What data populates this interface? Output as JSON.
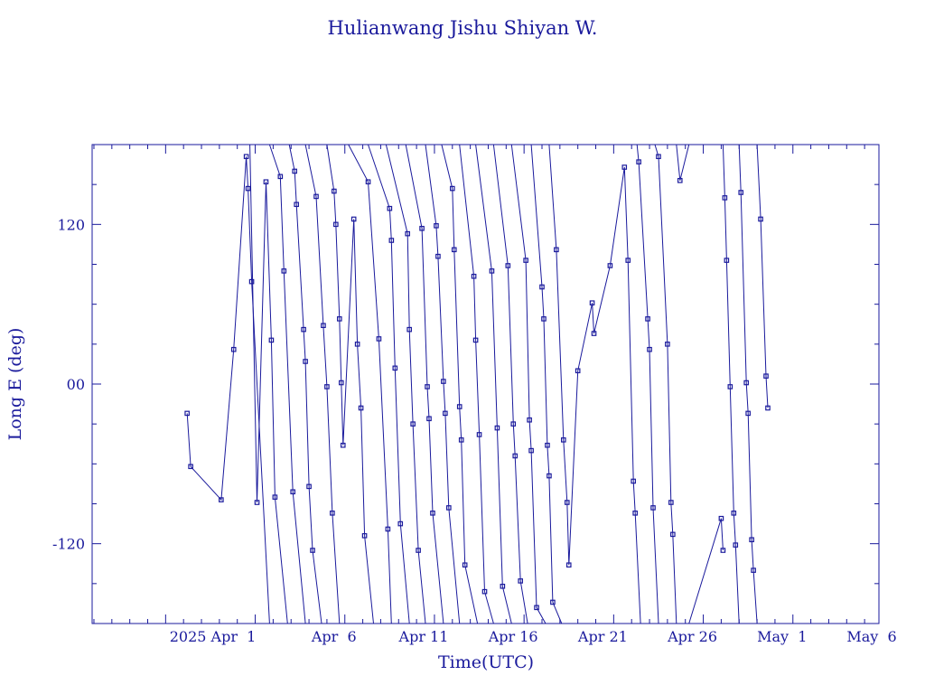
{
  "chart_data": {
    "type": "line",
    "title": "Hulianwang Jishu Shiyan W.",
    "xlabel": "Time(UTC)",
    "ylabel": "Long E (deg)",
    "ylim": [
      -180,
      180
    ],
    "xlim_days_from_mar27": [
      -4.0,
      39.9
    ],
    "x_tick_labels": [
      "2025 Apr  1",
      "Apr  6",
      "Apr 11",
      "Apr 16",
      "Apr 21",
      "Apr 26",
      "May  1",
      "May  6"
    ],
    "y_tick_labels": [
      "-120",
      "00",
      "120"
    ],
    "grid": false,
    "color": "#1a1a9c",
    "segments": [
      [
        [
          1.3,
          -22
        ],
        [
          1.5,
          -62
        ],
        [
          3.2,
          -87
        ],
        [
          3.9,
          26
        ],
        [
          4.6,
          171
        ],
        [
          4.7,
          147
        ],
        [
          4.9,
          77
        ],
        [
          5.9,
          -180
        ]
      ],
      [
        [
          4.8,
          180
        ],
        [
          5.2,
          -89
        ],
        [
          5.7,
          152
        ],
        [
          6.0,
          33
        ],
        [
          6.2,
          -85
        ],
        [
          6.9,
          -180
        ]
      ],
      [
        [
          5.9,
          180
        ],
        [
          6.5,
          156
        ],
        [
          6.7,
          85
        ],
        [
          7.2,
          -81
        ],
        [
          7.9,
          -180
        ]
      ],
      [
        [
          7.0,
          180
        ],
        [
          7.3,
          160
        ],
        [
          7.4,
          135
        ],
        [
          7.8,
          41
        ],
        [
          7.9,
          17
        ],
        [
          8.1,
          -77
        ],
        [
          8.3,
          -125
        ],
        [
          8.8,
          -180
        ]
      ],
      [
        [
          7.9,
          180
        ],
        [
          8.5,
          141
        ],
        [
          8.9,
          44
        ],
        [
          9.1,
          -2
        ],
        [
          9.4,
          -97
        ],
        [
          9.8,
          -180
        ]
      ],
      [
        [
          9.1,
          180
        ],
        [
          9.5,
          145
        ],
        [
          9.6,
          120
        ],
        [
          9.8,
          49
        ],
        [
          9.9,
          1
        ],
        [
          10.0,
          -46
        ],
        [
          10.6,
          124
        ],
        [
          10.8,
          30
        ],
        [
          11.0,
          -18
        ],
        [
          11.2,
          -114
        ],
        [
          11.7,
          -180
        ]
      ],
      [
        [
          10.3,
          180
        ],
        [
          11.4,
          152
        ],
        [
          12.0,
          34
        ],
        [
          12.5,
          -109
        ],
        [
          12.7,
          -180
        ]
      ],
      [
        [
          11.4,
          180
        ],
        [
          12.6,
          132
        ],
        [
          12.7,
          108
        ],
        [
          12.9,
          12
        ],
        [
          13.2,
          -105
        ],
        [
          13.7,
          -180
        ]
      ],
      [
        [
          12.4,
          180
        ],
        [
          13.6,
          113
        ],
        [
          13.7,
          41
        ],
        [
          13.9,
          -30
        ],
        [
          14.2,
          -125
        ],
        [
          14.6,
          -180
        ]
      ],
      [
        [
          13.5,
          180
        ],
        [
          14.4,
          117
        ],
        [
          14.7,
          -2
        ],
        [
          14.8,
          -26
        ],
        [
          15.0,
          -97
        ],
        [
          15.6,
          -180
        ]
      ],
      [
        [
          14.6,
          180
        ],
        [
          15.2,
          119
        ],
        [
          15.3,
          96
        ],
        [
          15.6,
          2
        ],
        [
          15.7,
          -22
        ],
        [
          15.9,
          -93
        ],
        [
          16.5,
          -180
        ]
      ],
      [
        [
          15.5,
          180
        ],
        [
          16.1,
          147
        ],
        [
          16.2,
          101
        ],
        [
          16.5,
          -17
        ],
        [
          16.6,
          -42
        ],
        [
          16.8,
          -136
        ],
        [
          17.5,
          -180
        ]
      ],
      [
        [
          16.5,
          180
        ],
        [
          17.3,
          81
        ],
        [
          17.4,
          33
        ],
        [
          17.6,
          -38
        ],
        [
          17.9,
          -156
        ],
        [
          18.4,
          -180
        ]
      ],
      [
        [
          17.4,
          180
        ],
        [
          18.3,
          85
        ],
        [
          18.6,
          -33
        ],
        [
          18.9,
          -152
        ],
        [
          19.4,
          -180
        ]
      ],
      [
        [
          18.4,
          180
        ],
        [
          19.2,
          89
        ],
        [
          19.5,
          -30
        ],
        [
          19.6,
          -54
        ],
        [
          19.9,
          -148
        ],
        [
          20.3,
          -180
        ]
      ],
      [
        [
          19.4,
          180
        ],
        [
          20.2,
          93
        ],
        [
          20.4,
          -27
        ],
        [
          20.5,
          -50
        ],
        [
          20.8,
          -168
        ],
        [
          21.3,
          -180
        ]
      ],
      [
        [
          20.5,
          180
        ],
        [
          21.1,
          73
        ],
        [
          21.2,
          49
        ],
        [
          21.4,
          -46
        ],
        [
          21.5,
          -69
        ],
        [
          21.7,
          -164
        ],
        [
          22.2,
          -180
        ]
      ],
      [
        [
          21.5,
          180
        ],
        [
          21.9,
          101
        ],
        [
          22.3,
          -42
        ],
        [
          22.5,
          -89
        ],
        [
          22.6,
          -136
        ],
        [
          23.1,
          10
        ],
        [
          23.9,
          61
        ],
        [
          24.0,
          38
        ],
        [
          24.9,
          89
        ],
        [
          25.7,
          163
        ],
        [
          25.9,
          93
        ],
        [
          26.2,
          -73
        ],
        [
          26.3,
          -97
        ],
        [
          26.6,
          -180
        ]
      ],
      [
        [
          26.4,
          180
        ],
        [
          26.5,
          167
        ],
        [
          27.0,
          49
        ],
        [
          27.1,
          26
        ],
        [
          27.3,
          -93
        ],
        [
          27.6,
          -180
        ]
      ],
      [
        [
          27.4,
          180
        ],
        [
          27.6,
          171
        ],
        [
          28.1,
          30
        ],
        [
          28.3,
          -89
        ],
        [
          28.4,
          -113
        ],
        [
          28.6,
          -180
        ]
      ],
      [
        [
          28.6,
          180
        ],
        [
          28.8,
          153
        ],
        [
          29.3,
          180
        ]
      ],
      [
        [
          29.3,
          -180
        ],
        [
          31.1,
          -101
        ],
        [
          31.2,
          -125
        ]
      ],
      [
        [
          31.2,
          180
        ],
        [
          31.3,
          140
        ],
        [
          31.4,
          93
        ],
        [
          31.6,
          -2
        ],
        [
          31.8,
          -97
        ],
        [
          31.9,
          -121
        ],
        [
          32.1,
          -180
        ]
      ],
      [
        [
          32.1,
          180
        ],
        [
          32.2,
          144
        ],
        [
          32.5,
          1
        ],
        [
          32.6,
          -22
        ],
        [
          32.8,
          -117
        ],
        [
          32.9,
          -140
        ],
        [
          33.1,
          -180
        ]
      ],
      [
        [
          33.1,
          180
        ],
        [
          33.3,
          124
        ],
        [
          33.6,
          6
        ],
        [
          33.7,
          -18
        ]
      ]
    ]
  }
}
